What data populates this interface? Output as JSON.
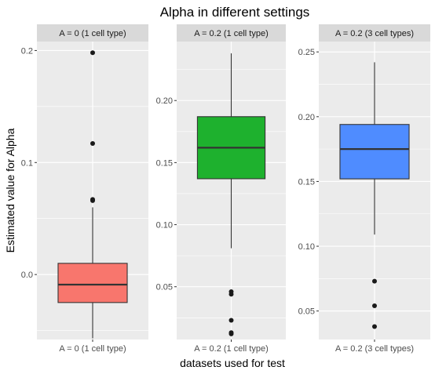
{
  "chart_data": {
    "type": "boxplot",
    "title": "Alpha in different settings",
    "xlabel": "datasets used for test",
    "ylabel": "Estimated value for Alpha",
    "grid": true,
    "legend": "none",
    "panels": [
      {
        "strip": "A = 0 (1 cell type)",
        "category": "A = 0 (1 cell type)",
        "fill": "#F8766D",
        "ylim": [
          -0.058,
          0.208
        ],
        "yticks": [
          0.0,
          0.1,
          0.2
        ],
        "ytick_labels": [
          "0.0",
          "0.1",
          "0.2"
        ],
        "box": {
          "whisker_low": -0.057,
          "q1": -0.025,
          "median": -0.009,
          "q3": 0.01,
          "whisker_high": 0.06
        },
        "outliers": [
          0.067,
          0.066,
          0.117,
          0.198
        ]
      },
      {
        "strip": "A = 0.2 (1 cell type)",
        "category": "A = 0.2 (1 cell type)",
        "fill": "#1EB12E",
        "ylim": [
          0.0075,
          0.2475
        ],
        "yticks": [
          0.05,
          0.1,
          0.15,
          0.2
        ],
        "ytick_labels": [
          "0.05",
          "0.10",
          "0.15",
          "0.20"
        ],
        "box": {
          "whisker_low": 0.081,
          "q1": 0.137,
          "median": 0.162,
          "q3": 0.187,
          "whisker_high": 0.238
        },
        "outliers": [
          0.046,
          0.044,
          0.023,
          0.013,
          0.012
        ]
      },
      {
        "strip": "A = 0.2 (3 cell types)",
        "category": "A = 0.2 (3 cell types)",
        "fill": "#4F8CFF",
        "ylim": [
          0.028,
          0.258
        ],
        "yticks": [
          0.05,
          0.1,
          0.15,
          0.2,
          0.25
        ],
        "ytick_labels": [
          "0.05",
          "0.10",
          "0.15",
          "0.20",
          "0.25"
        ],
        "box": {
          "whisker_low": 0.109,
          "q1": 0.152,
          "median": 0.175,
          "q3": 0.194,
          "whisker_high": 0.242
        },
        "outliers": [
          0.073,
          0.054,
          0.038
        ]
      }
    ]
  }
}
